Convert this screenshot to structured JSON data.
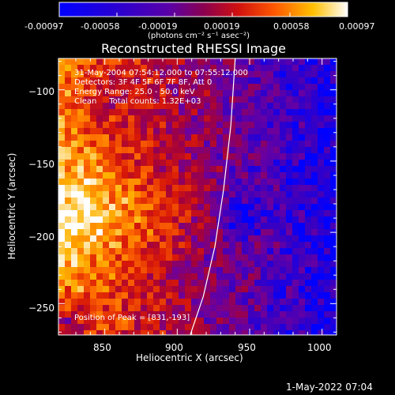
{
  "colorbar": {
    "tick_labels": [
      "-0.00097",
      "-0.00058",
      "-0.00019",
      "0.00019",
      "0.00058",
      "0.00097"
    ],
    "min": -0.00097,
    "max": 0.00097,
    "unit_label": "(photons cm⁻² s⁻¹ asec⁻²)"
  },
  "title": "Reconstructed RHESSI Image",
  "info": {
    "line1": "31-May-2004 07:54:12.000 to 07:55:12.000",
    "line2": "Detectors: 3F 4F 5F 6F 7F 8F, Att 0",
    "line3": "Energy Range: 25.0 - 50.0 keV",
    "line4": "Clean     Total counts: 1.32E+03",
    "peak": "Position of Peak = [831,-193]"
  },
  "timestamp": "1-May-2022 07:04",
  "chart_data": {
    "type": "heatmap",
    "title": "Reconstructed RHESSI Image",
    "xlabel": "Heliocentric X (arcsec)",
    "ylabel": "Heliocentric Y (arcsec)",
    "xlim": [
      818,
      1010
    ],
    "ylim": [
      -272,
      -78
    ],
    "xticks": [
      850,
      900,
      950,
      1000
    ],
    "yticks": [
      -100,
      -150,
      -200,
      -250
    ],
    "xtick_labels": [
      "850",
      "900",
      "950",
      "1000"
    ],
    "ytick_labels": [
      "−100",
      "−150",
      "−200",
      "−250"
    ],
    "color_scale": [
      "#0000ff",
      "#3a00c0",
      "#6a00a0",
      "#a00040",
      "#d81808",
      "#ff6a00",
      "#ffb400",
      "#ffffff"
    ],
    "limb_curve_x": [
      940,
      937,
      932,
      926,
      918,
      909
    ],
    "limb_curve_y": [
      -78,
      -125,
      -170,
      -210,
      -245,
      -272
    ],
    "peak": [
      831,
      -193
    ]
  }
}
